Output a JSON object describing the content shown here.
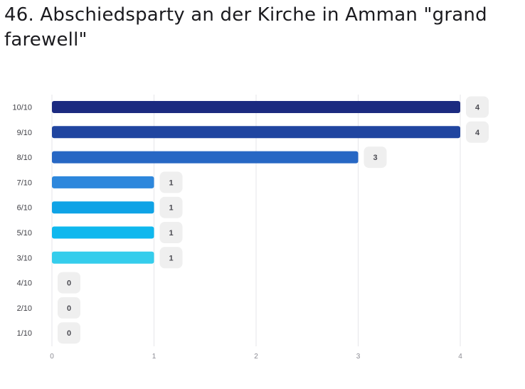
{
  "title": "46. Abschiedsparty an der Kirche in Amman \"grand farewell\"",
  "chart_data": {
    "type": "bar",
    "orientation": "horizontal",
    "categories": [
      "10/10",
      "9/10",
      "8/10",
      "7/10",
      "6/10",
      "5/10",
      "3/10",
      "4/10",
      "2/10",
      "1/10"
    ],
    "values": [
      4,
      4,
      3,
      1,
      1,
      1,
      1,
      0,
      0,
      0
    ],
    "colors": [
      "#1b2a80",
      "#2045a0",
      "#2767c4",
      "#2d87dc",
      "#0fa3e6",
      "#0fb8ee",
      "#35cdec",
      "#35cdec",
      "#35cdec",
      "#35cdec"
    ],
    "xticks": [
      0,
      1,
      2,
      3,
      4
    ],
    "xlim": [
      0,
      4
    ],
    "grid": true,
    "legend": "none",
    "data_labels": true
  }
}
